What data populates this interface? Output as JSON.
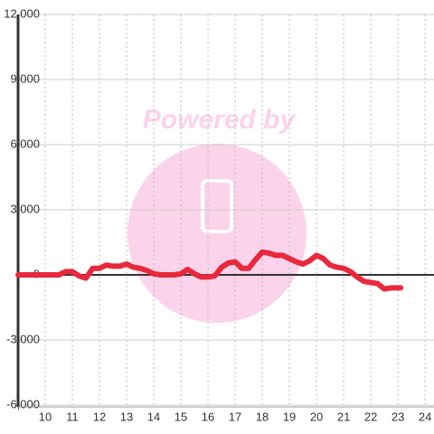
{
  "chart_data": {
    "type": "line",
    "watermark": "Powered by",
    "x": [
      9,
      9.25,
      9.5,
      9.75,
      10,
      10.25,
      10.5,
      10.75,
      11,
      11.25,
      11.5,
      11.75,
      12,
      12.25,
      12.5,
      12.75,
      13,
      13.25,
      13.5,
      13.75,
      14,
      14.25,
      14.5,
      14.75,
      15,
      15.25,
      15.5,
      15.75,
      16,
      16.25,
      16.5,
      16.75,
      17,
      17.25,
      17.5,
      17.75,
      18,
      18.25,
      18.5,
      18.75,
      19,
      19.25,
      19.5,
      19.75,
      20,
      20.25,
      20.5,
      20.75,
      21,
      21.25,
      21.5,
      21.75,
      22,
      22.25,
      22.5,
      22.75,
      23,
      23.1
    ],
    "series": [
      {
        "color": "#e8283c",
        "values": [
          0,
          0,
          0,
          0,
          0,
          0,
          0,
          150,
          150,
          -50,
          -150,
          300,
          300,
          450,
          400,
          400,
          500,
          350,
          300,
          200,
          50,
          0,
          0,
          0,
          50,
          250,
          50,
          -100,
          -100,
          -50,
          350,
          550,
          600,
          300,
          300,
          700,
          1050,
          1000,
          900,
          900,
          750,
          600,
          500,
          650,
          900,
          750,
          450,
          350,
          300,
          150,
          -100,
          -300,
          -350,
          -400,
          -650,
          -600,
          -600,
          -600
        ]
      }
    ],
    "xlim": [
      9,
      24.33
    ],
    "xticks": [
      10,
      11,
      12,
      13,
      14,
      15,
      16,
      17,
      18,
      19,
      20,
      21,
      22,
      23,
      24
    ],
    "ylim": [
      -6000,
      12000
    ],
    "yticks": [
      {
        "value": -6000,
        "label": "-6,000"
      },
      {
        "value": -3000,
        "label": "-3,000"
      },
      0,
      {
        "value": 3000,
        "label": "3,000"
      },
      {
        "value": 6000,
        "label": "6,000"
      },
      {
        "value": 9000,
        "label": "9,000"
      },
      {
        "value": 12000,
        "label": "12,000"
      }
    ],
    "grid": true
  }
}
